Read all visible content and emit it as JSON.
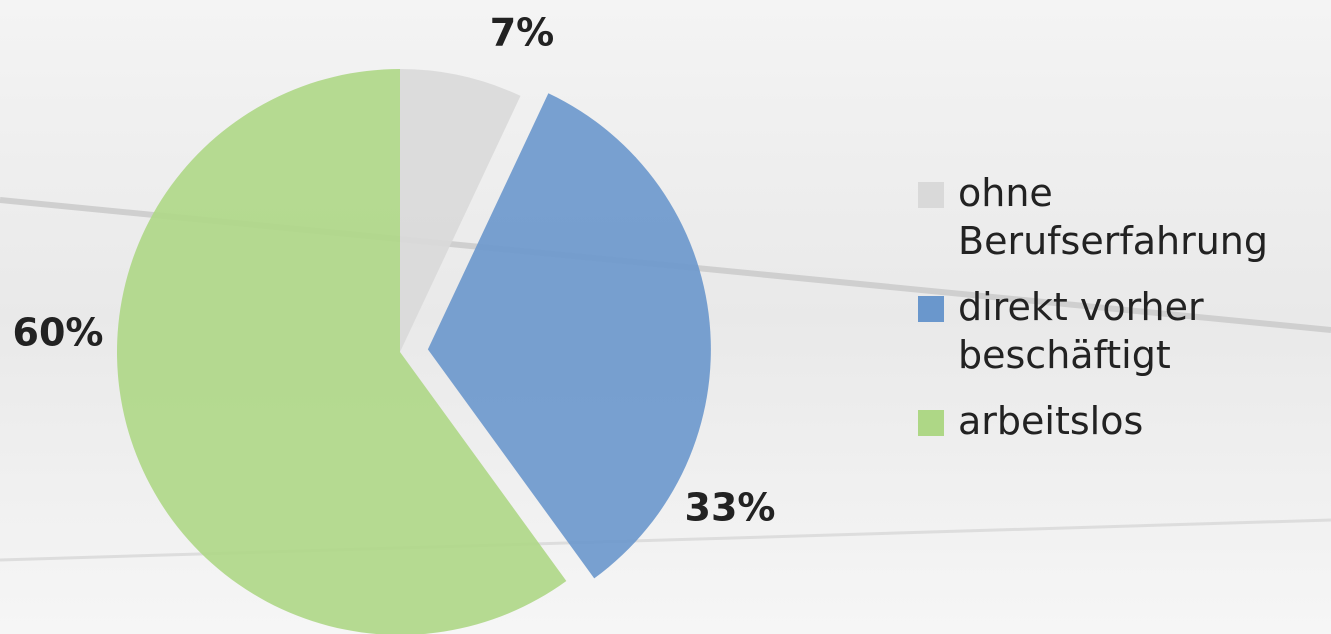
{
  "chart_data": {
    "type": "pie",
    "categories": [
      "ohne Berufserfahrung",
      "direkt vorher beschäftigt",
      "arbeitslos"
    ],
    "values": [
      7,
      33,
      60
    ],
    "value_labels": [
      "7%",
      "33%",
      "60%"
    ],
    "colors": [
      "#d9d9d9",
      "#6a97cc",
      "#aed786"
    ],
    "exploded": [
      false,
      true,
      false
    ],
    "legend": "right"
  }
}
